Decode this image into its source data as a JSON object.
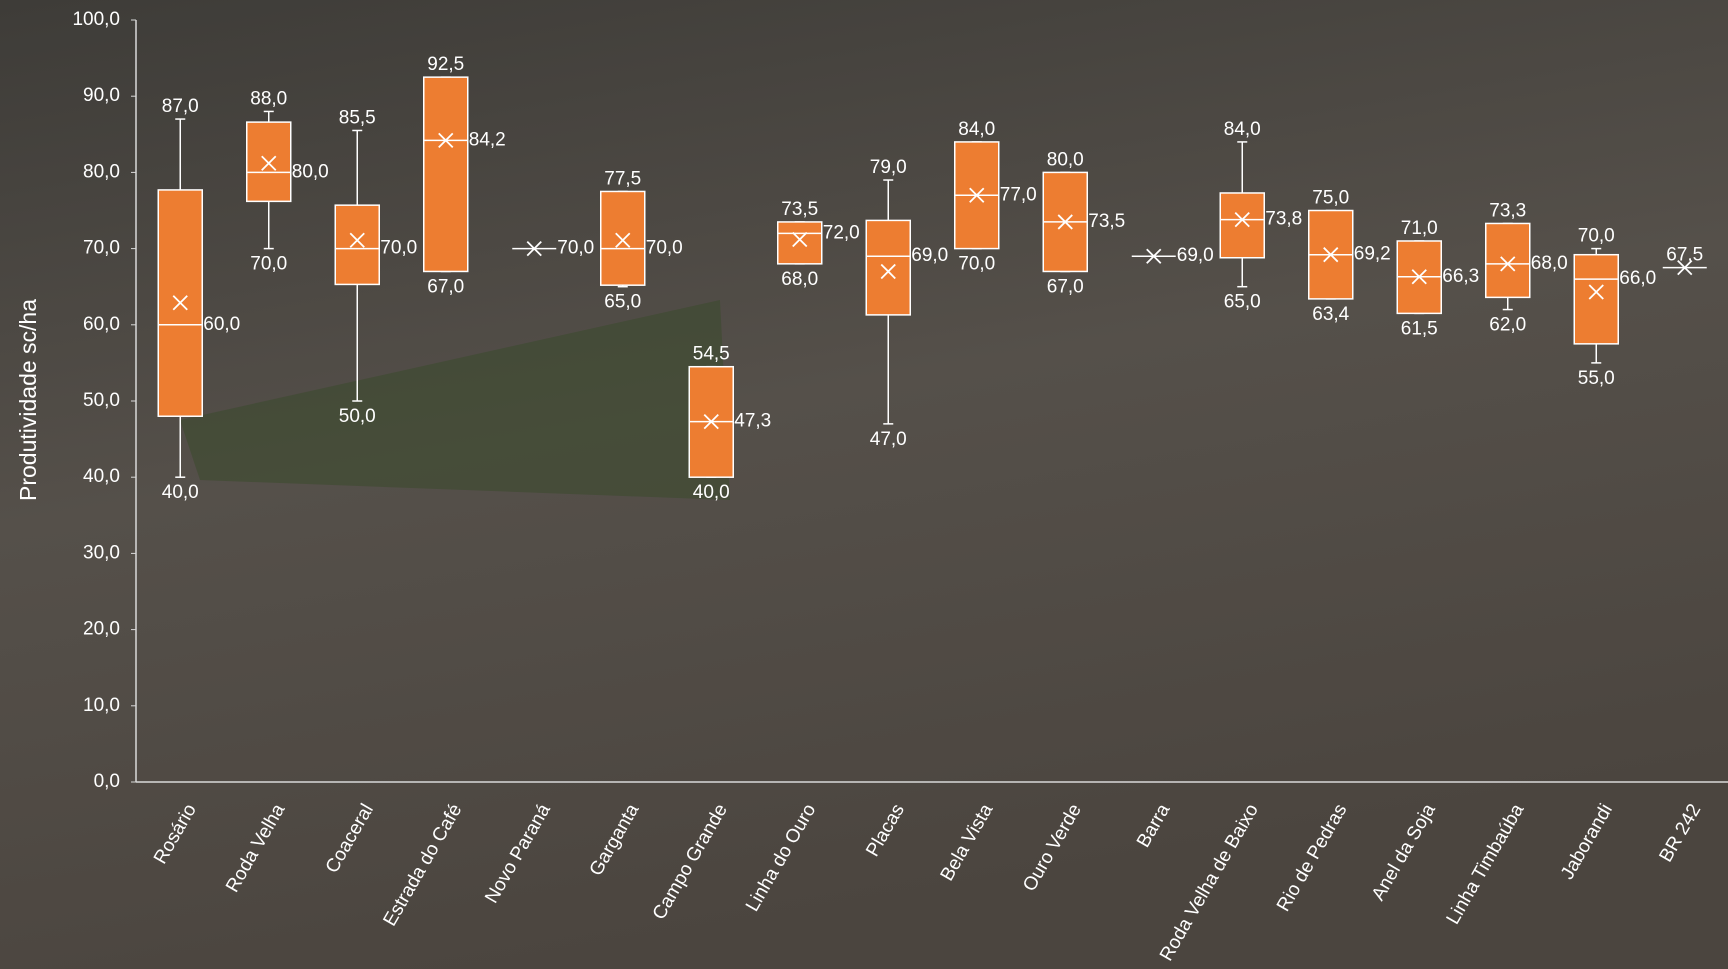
{
  "chart_data": {
    "type": "box",
    "y_label": "Produtividade sc/ha",
    "color": "#ed7d31",
    "ylim": [
      0,
      100
    ],
    "yticks": [
      {
        "value": 0,
        "label": "0,0"
      },
      {
        "value": 10,
        "label": "10,0"
      },
      {
        "value": 20,
        "label": "20,0"
      },
      {
        "value": 30,
        "label": "30,0"
      },
      {
        "value": 40,
        "label": "40,0"
      },
      {
        "value": 50,
        "label": "50,0"
      },
      {
        "value": 60,
        "label": "60,0"
      },
      {
        "value": 70,
        "label": "70,0"
      },
      {
        "value": 80,
        "label": "80,0"
      },
      {
        "value": 90,
        "label": "90,0"
      },
      {
        "value": 100,
        "label": "100,0"
      }
    ],
    "categories": [
      "Rosário",
      "Roda Velha",
      "Coaceral",
      "Estrada do Café",
      "Novo Paraná",
      "Garganta",
      "Campo Grande",
      "Linha do Ouro",
      "Placas",
      "Bela Vista",
      "Ouro Verde",
      "Barra",
      "Roda Velha de Baixo",
      "Rio de Pedras",
      "Anel da Soja",
      "Linha Timbaúba",
      "Jaborandi",
      "BR 242"
    ],
    "boxes": [
      {
        "min": 40,
        "q1": 48,
        "median": 60,
        "q3": 77.7,
        "max": 87,
        "mean": 62.9,
        "value_labels": {
          "max": "87,0",
          "median": "60,0",
          "min": "40,0"
        }
      },
      {
        "min": 70,
        "q1": 76.2,
        "median": 80,
        "q3": 86.6,
        "max": 88,
        "mean": 81.2,
        "value_labels": {
          "max": "88,0",
          "median": "80,0",
          "min": "70,0"
        }
      },
      {
        "min": 50,
        "q1": 65.3,
        "median": 70,
        "q3": 75.7,
        "max": 85.5,
        "mean": 71.1,
        "value_labels": {
          "max": "85,5",
          "median": "70,0",
          "min": "50,0"
        }
      },
      {
        "min": 67,
        "q1": 67,
        "median": 84.2,
        "q3": 92.5,
        "max": 92.5,
        "mean": 84.2,
        "value_labels": {
          "max": "92,5",
          "mean": "84,2",
          "min": "67,0"
        }
      },
      {
        "min": 70,
        "q1": 70,
        "median": 70,
        "q3": 70,
        "max": 70,
        "mean": 70,
        "value_labels": {
          "mean": "70,0"
        }
      },
      {
        "min": 65,
        "q1": 65.2,
        "median": 70,
        "q3": 77.5,
        "max": 77.5,
        "mean": 71.1,
        "value_labels": {
          "max": "77,5",
          "median": "70,0",
          "min": "65,0"
        }
      },
      {
        "min": 40,
        "q1": 40,
        "median": 47.3,
        "q3": 54.5,
        "max": 54.5,
        "mean": 47.3,
        "value_labels": {
          "max": "54,5",
          "median": "47,3",
          "min": "40,0"
        }
      },
      {
        "min": 68,
        "q1": 68,
        "median": 72,
        "q3": 73.5,
        "max": 73.5,
        "mean": 71.2,
        "value_labels": {
          "max": "73,5",
          "median": "72,0",
          "min": "68,0"
        }
      },
      {
        "min": 47,
        "q1": 61.3,
        "median": 69,
        "q3": 73.7,
        "max": 79,
        "mean": 67,
        "value_labels": {
          "max": "79,0",
          "median": "69,0",
          "min": "47,0"
        }
      },
      {
        "min": 70,
        "q1": 70,
        "median": 77,
        "q3": 84,
        "max": 84,
        "mean": 77,
        "value_labels": {
          "max": "84,0",
          "median": "77,0",
          "min": "70,0"
        }
      },
      {
        "min": 67,
        "q1": 67,
        "median": 73.5,
        "q3": 80,
        "max": 80,
        "mean": 73.5,
        "value_labels": {
          "max": "80,0",
          "median": "73,5",
          "min": "67,0"
        }
      },
      {
        "min": 69,
        "q1": 69,
        "median": 69,
        "q3": 69,
        "max": 69,
        "mean": 69,
        "value_labels": {
          "mean": "69,0"
        }
      },
      {
        "min": 65,
        "q1": 68.8,
        "median": 73.8,
        "q3": 77.3,
        "max": 84,
        "mean": 73.8,
        "value_labels": {
          "max": "84,0",
          "median": "73,8",
          "min": "65,0"
        }
      },
      {
        "min": 63.4,
        "q1": 63.4,
        "median": 69.2,
        "q3": 75,
        "max": 75,
        "mean": 69.2,
        "value_labels": {
          "max": "75,0",
          "median": "69,2",
          "min": "63,4"
        }
      },
      {
        "min": 61.5,
        "q1": 61.5,
        "median": 66.3,
        "q3": 71,
        "max": 71,
        "mean": 66.3,
        "value_labels": {
          "max": "71,0",
          "median": "66,3",
          "min": "61,5"
        }
      },
      {
        "min": 62,
        "q1": 63.6,
        "median": 68,
        "q3": 73.3,
        "max": 73.3,
        "mean": 68,
        "value_labels": {
          "max": "73,3",
          "median": "68,0",
          "min": "62,0"
        }
      },
      {
        "min": 55,
        "q1": 57.5,
        "median": 66,
        "q3": 69.2,
        "max": 70,
        "mean": 64.3,
        "value_labels": {
          "max": "70,0",
          "median": "66,0",
          "min": "55,0"
        }
      },
      {
        "min": 67.5,
        "q1": 67.5,
        "median": 67.5,
        "q3": 67.5,
        "max": 67.5,
        "mean": 67.5,
        "value_labels": {
          "max": "67,5"
        }
      }
    ]
  }
}
